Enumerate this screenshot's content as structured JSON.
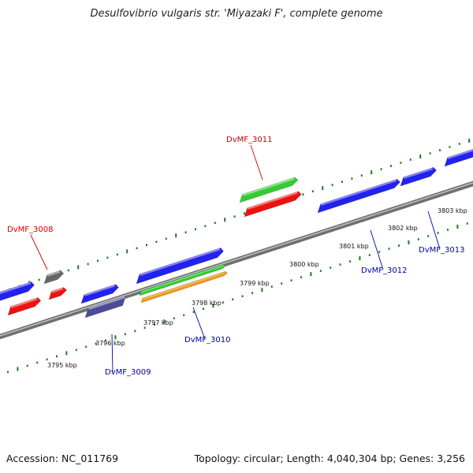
{
  "title": "Desulfovibrio vulgaris str. 'Miyazaki F', complete genome",
  "footer": {
    "accession": "Accession: NC_011769",
    "summary": "Topology: circular; Length: 4,040,304 bp; Genes: 3,256"
  },
  "colors": {
    "backbone": "#8f8f8f",
    "tick": "#1f7a1f",
    "label_red": "#cc0000",
    "label_blue": "#0000aa"
  },
  "kbp_labels": [
    "3795 kbp",
    "3796 kbp",
    "3797 kbp",
    "3798 kbp",
    "3799 kbp",
    "3800 kbp",
    "3801 kbp",
    "3802 kbp",
    "3803 kbp"
  ],
  "gene_labels": [
    {
      "text": "DvMF_3008",
      "color": "#cc0000"
    },
    {
      "text": "DvMF_3009",
      "color": "#0000aa"
    },
    {
      "text": "DvMF_3010",
      "color": "#0000aa"
    },
    {
      "text": "DvMF_3011",
      "color": "#cc0000"
    },
    {
      "text": "DvMF_3012",
      "color": "#0000aa"
    },
    {
      "text": "DvMF_3013",
      "color": "#0000aa"
    }
  ],
  "features": [
    {
      "color": "#2222ee",
      "track": "forward-outer"
    },
    {
      "color": "#ee1111",
      "track": "forward-inner"
    },
    {
      "color": "#666666",
      "track": "forward-outer"
    },
    {
      "color": "#ee1111",
      "track": "forward-inner"
    },
    {
      "color": "#2222ee",
      "track": "reverse-inner"
    },
    {
      "color": "#4b4b99",
      "track": "reverse-outer"
    },
    {
      "color": "#2222ee",
      "track": "reverse-inner"
    },
    {
      "color": "#33cc33",
      "track": "reverse-middle"
    },
    {
      "color": "#f09a1a",
      "track": "reverse-outer"
    },
    {
      "color": "#33cc33",
      "track": "forward-outer"
    },
    {
      "color": "#ee1111",
      "track": "forward-inner"
    },
    {
      "color": "#2222ee",
      "track": "reverse-inner"
    },
    {
      "color": "#2222ee",
      "track": "reverse-inner"
    },
    {
      "color": "#2222ee",
      "track": "reverse-inner"
    }
  ]
}
